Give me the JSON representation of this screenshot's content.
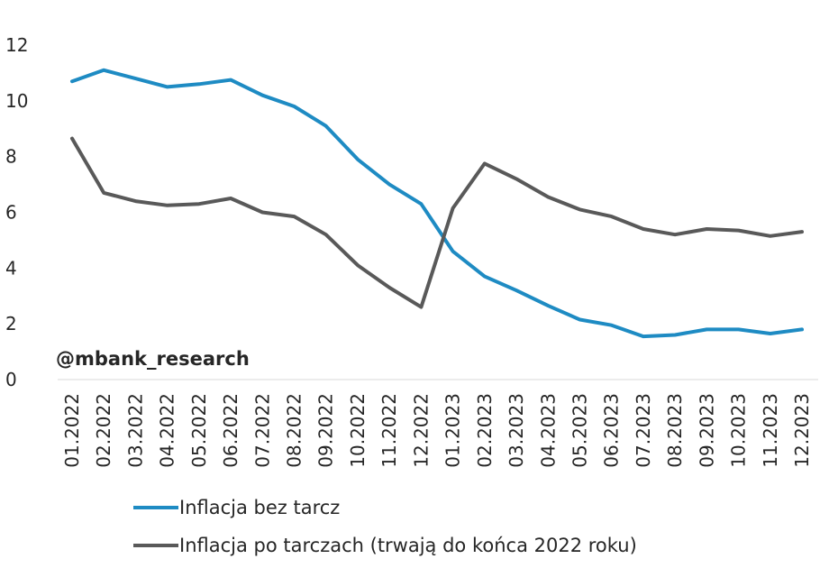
{
  "chart_data": {
    "type": "line",
    "x": [
      "01.2022",
      "02.2022",
      "03.2022",
      "04.2022",
      "05.2022",
      "06.2022",
      "07.2022",
      "08.2022",
      "09.2022",
      "10.2022",
      "11.2022",
      "12.2022",
      "01.2023",
      "02.2023",
      "03.2023",
      "04.2023",
      "05.2023",
      "06.2023",
      "07.2023",
      "08.2023",
      "09.2023",
      "10.2023",
      "11.2023",
      "12.2023"
    ],
    "series": [
      {
        "name": "Inflacja bez tarcz",
        "color": "#1E8BC3",
        "values": [
          10.7,
          11.1,
          10.8,
          10.5,
          10.6,
          10.75,
          10.2,
          9.8,
          9.1,
          7.9,
          7.0,
          6.3,
          4.6,
          3.7,
          3.2,
          2.65,
          2.15,
          1.95,
          1.55,
          1.6,
          1.8,
          1.8,
          1.65,
          1.8
        ]
      },
      {
        "name": "Inflacja po tarczach (trwają do końca 2022 roku)",
        "color": "#595959",
        "values": [
          8.65,
          6.7,
          6.4,
          6.25,
          6.3,
          6.5,
          6.0,
          5.85,
          5.2,
          4.1,
          3.3,
          2.6,
          6.15,
          7.75,
          7.2,
          6.55,
          6.1,
          5.85,
          5.4,
          5.2,
          5.4,
          5.35,
          5.15,
          5.3
        ]
      }
    ],
    "ylim": [
      0,
      12
    ],
    "yticks": [
      0,
      2,
      4,
      6,
      8,
      10,
      12
    ],
    "grid": false,
    "legend_position": "bottom",
    "annotation": "@mbank_research"
  }
}
